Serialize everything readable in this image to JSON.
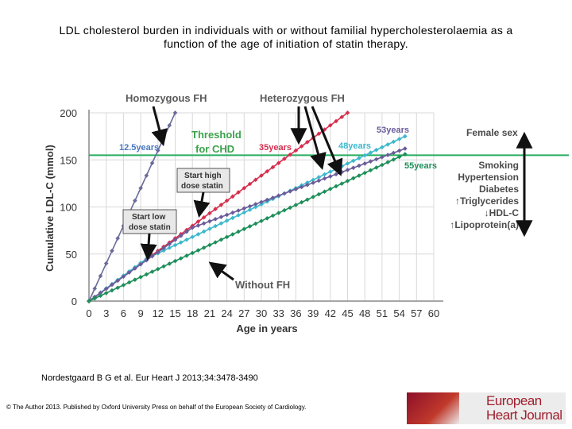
{
  "slide": {
    "title_line1": "LDL cholesterol burden in individuals with or without familial hypercholesterolaemia as a",
    "title_line2": "function of the age of initiation of statin therapy.",
    "citation": "Nordestgaard B G et al. Eur Heart J 2013;34:3478-3490",
    "copyright": "© The Author 2013. Published by Oxford University Press on behalf of the European Society of Cardiology.",
    "logo_line1": "European",
    "logo_line2": "Heart Journal"
  },
  "chart_data": {
    "type": "line",
    "xlabel": "Age in years",
    "ylabel": "Cumulative LDL-C (mmol)",
    "xlim": [
      0,
      60
    ],
    "ylim": [
      0,
      200
    ],
    "x_ticks": [
      0,
      3,
      6,
      9,
      12,
      15,
      18,
      21,
      24,
      27,
      30,
      33,
      36,
      39,
      42,
      45,
      48,
      51,
      54,
      57,
      60
    ],
    "y_ticks": [
      0,
      50,
      100,
      150,
      200
    ],
    "threshold": {
      "value": 155,
      "label_line1": "Threshold",
      "label_line2": "for CHD",
      "color": "#27ae60"
    },
    "series": [
      {
        "name": "Homozygous FH",
        "color": "#6b6b9a",
        "x": [
          0,
          15
        ],
        "y": [
          0,
          200
        ]
      },
      {
        "name": "Heterozygous FH (no statin)",
        "color": "#d62f4e",
        "x": [
          0,
          45
        ],
        "y": [
          0,
          200
        ]
      },
      {
        "name": "Heterozygous FH (start low dose statin)",
        "color": "#3eb8cc",
        "x": [
          0,
          10,
          55
        ],
        "y": [
          0,
          45,
          175
        ]
      },
      {
        "name": "Heterozygous FH (start high dose statin)",
        "color": "#6b5c99",
        "x": [
          0,
          18,
          55
        ],
        "y": [
          0,
          78,
          162
        ]
      },
      {
        "name": "Without FH",
        "color": "#1e8f5a",
        "x": [
          0,
          55
        ],
        "y": [
          0,
          156
        ]
      }
    ],
    "annotations": {
      "homozygous": "Homozygous FH",
      "heterozygous": "Heterozygous FH",
      "without_fh": "Without FH",
      "start_high_line1": "Start high",
      "start_high_line2": "dose statin",
      "start_low_line1": "Start low",
      "start_low_line2": "dose statin",
      "age_12_5": "12.5years",
      "age_35": "35years",
      "age_48": "48years",
      "age_53": "53years",
      "age_55": "55years"
    },
    "risk_factors": {
      "female_sex": "Female sex",
      "items": [
        "Smoking",
        "Hypertension",
        "Diabetes",
        "↑Triglycerides",
        "↓HDL-C",
        "↑Lipoprotein(a)"
      ]
    }
  }
}
